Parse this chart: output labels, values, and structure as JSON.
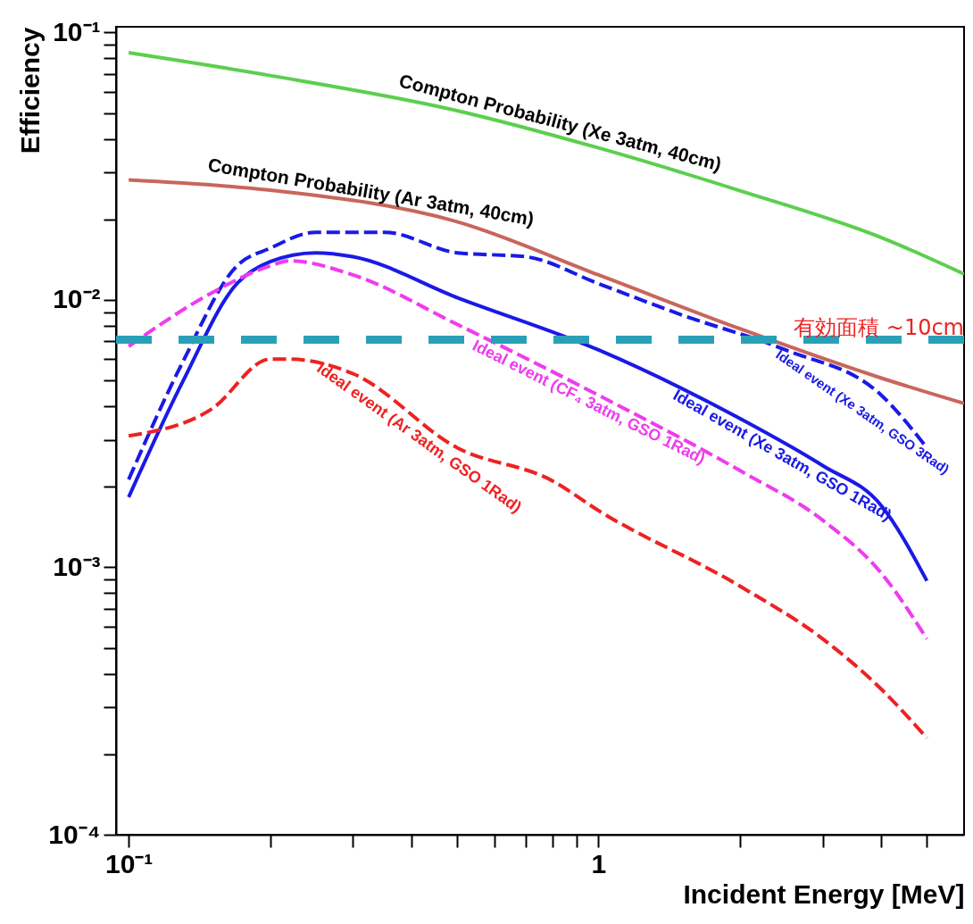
{
  "chart_data": {
    "type": "line",
    "xlabel": "Incident Energy [MeV]",
    "ylabel": "Efficiency",
    "log": "xy",
    "grid": false,
    "xlim": [
      0.094,
      6
    ],
    "ylim": [
      0.0001,
      0.105
    ],
    "xticks": [
      {
        "value": 0.1,
        "label": "10⁻¹"
      },
      {
        "value": 0.2,
        "label": null
      },
      {
        "value": 0.3,
        "label": null
      },
      {
        "value": 0.4,
        "label": null
      },
      {
        "value": 0.5,
        "label": null
      },
      {
        "value": 0.6,
        "label": null
      },
      {
        "value": 0.7,
        "label": null
      },
      {
        "value": 0.8,
        "label": null
      },
      {
        "value": 0.9,
        "label": null
      },
      1,
      {
        "value": 2,
        "label": null
      },
      {
        "value": 3,
        "label": null
      },
      {
        "value": 4,
        "label": null
      },
      {
        "value": 5,
        "label": null
      }
    ],
    "yticks": [
      {
        "value": 0.0001,
        "label": "10⁻⁴"
      },
      {
        "value": 0.0002,
        "label": null
      },
      {
        "value": 0.0003,
        "label": null
      },
      {
        "value": 0.0004,
        "label": null
      },
      {
        "value": 0.0005,
        "label": null
      },
      {
        "value": 0.0006,
        "label": null
      },
      {
        "value": 0.0007,
        "label": null
      },
      {
        "value": 0.0008,
        "label": null
      },
      {
        "value": 0.0009,
        "label": null
      },
      {
        "value": 0.001,
        "label": "10⁻³"
      },
      {
        "value": 0.002,
        "label": null
      },
      {
        "value": 0.003,
        "label": null
      },
      {
        "value": 0.004,
        "label": null
      },
      {
        "value": 0.005,
        "label": null
      },
      {
        "value": 0.006,
        "label": null
      },
      {
        "value": 0.007,
        "label": null
      },
      {
        "value": 0.008,
        "label": null
      },
      {
        "value": 0.009,
        "label": null
      },
      {
        "value": 0.01,
        "label": "10⁻²"
      },
      {
        "value": 0.02,
        "label": null
      },
      {
        "value": 0.03,
        "label": null
      },
      {
        "value": 0.04,
        "label": null
      },
      {
        "value": 0.05,
        "label": null
      },
      {
        "value": 0.06,
        "label": null
      },
      {
        "value": 0.07,
        "label": null
      },
      {
        "value": 0.08,
        "label": null
      },
      {
        "value": 0.09,
        "label": null
      },
      {
        "value": 0.1,
        "label": "10⁻¹"
      }
    ],
    "series": [
      {
        "name": "Compton Probability (Xe 3atm, 40cm)",
        "color": "#5ccf4e",
        "line_style": "solid",
        "x": [
          0.1,
          0.2,
          0.5,
          1,
          2,
          4,
          6
        ],
        "values": [
          0.084,
          0.069,
          0.051,
          0.037,
          0.0256,
          0.0171,
          0.0125
        ]
      },
      {
        "name": "Compton Probability (Ar 3atm, 40cm)",
        "color": "#c8665c",
        "line_style": "solid",
        "x": [
          0.1,
          0.2,
          0.5,
          1,
          2,
          4,
          6
        ],
        "values": [
          0.0281,
          0.0257,
          0.0196,
          0.0124,
          0.0078,
          0.0051,
          0.0041
        ]
      },
      {
        "name": "Ideal event (Xe 3atm, GSO 3Rad)",
        "color": "#1a1ae6",
        "line_style": "dashed",
        "x": [
          0.1,
          0.13,
          0.17,
          0.2,
          0.25,
          0.35,
          0.5,
          0.7,
          1,
          1.5,
          2.5,
          4,
          5
        ],
        "values": [
          0.00213,
          0.0058,
          0.0134,
          0.0156,
          0.0179,
          0.0179,
          0.015,
          0.0145,
          0.0115,
          0.0088,
          0.0065,
          0.0044,
          0.0028
        ]
      },
      {
        "name": "Ideal event (Xe 3atm, GSO 1Rad)",
        "color": "#1a1ae6",
        "line_style": "solid",
        "x": [
          0.1,
          0.13,
          0.17,
          0.2,
          0.25,
          0.3,
          0.5,
          1,
          2,
          3,
          4,
          5
        ],
        "values": [
          0.00183,
          0.0049,
          0.0115,
          0.0139,
          0.015,
          0.0145,
          0.0102,
          0.0065,
          0.0036,
          0.0024,
          0.0017,
          0.00089
        ]
      },
      {
        "name": "Ideal event (CF₄ 3atm, GSO 1Rad)",
        "color": "#ee3cee",
        "line_style": "dashed",
        "x": [
          0.1,
          0.15,
          0.2,
          0.22,
          0.3,
          0.5,
          1,
          2,
          3,
          4,
          5
        ],
        "values": [
          0.0067,
          0.0106,
          0.0134,
          0.014,
          0.0124,
          0.0081,
          0.0044,
          0.0023,
          0.0015,
          0.00095,
          0.00054
        ]
      },
      {
        "name": "Ideal event (Ar 3atm, GSO 1Rad)",
        "color": "#ee2222",
        "line_style": "dashed",
        "x": [
          0.1,
          0.15,
          0.2,
          0.22,
          0.3,
          0.5,
          0.8,
          1,
          2,
          3,
          4,
          5
        ],
        "values": [
          0.0031,
          0.0039,
          0.006,
          0.006,
          0.0053,
          0.0028,
          0.0021,
          0.00163,
          0.00085,
          0.00054,
          0.00035,
          0.00023
        ]
      }
    ],
    "ref_lines": [
      {
        "axis": "y",
        "value": 0.0071,
        "label": "有効面積 ~10cm",
        "color": "#2aa0b8",
        "line_style": "dashed"
      }
    ]
  }
}
